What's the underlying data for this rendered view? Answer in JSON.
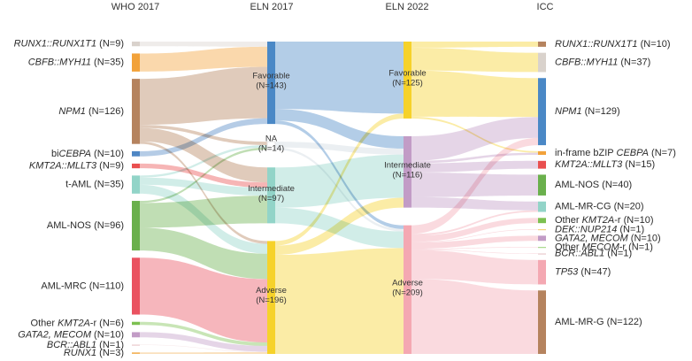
{
  "headers": [
    "WHO 2017",
    "ELN 2017",
    "ELN 2022",
    "ICC"
  ],
  "who2017": [
    {
      "name": "RUNX1::RUNX1T1",
      "n": 9,
      "label": "RUNX1::RUNX1T1 (N=9)",
      "color": "#d9d2cc"
    },
    {
      "name": "CBFB::MYH11",
      "n": 35,
      "label": "CBFB::MYH11 (N=35)",
      "color": "#f2a23a"
    },
    {
      "name": "NPM1",
      "n": 126,
      "label": "NPM1 (N=126)",
      "color": "#b5835e"
    },
    {
      "name": "biCEBPA",
      "n": 10,
      "label": "biCEBPA (N=10)",
      "color": "#4e86c4"
    },
    {
      "name": "KMT2A::MLLT3",
      "n": 9,
      "label": "KMT2A::MLLT3 (N=9)",
      "color": "#e94f4f"
    },
    {
      "name": "t-AML",
      "n": 35,
      "label": "t-AML (N=35)",
      "color": "#92d4c8"
    },
    {
      "name": "AML-NOS",
      "n": 96,
      "label": "AML-NOS (N=96)",
      "color": "#6ab04c"
    },
    {
      "name": "AML-MRC",
      "n": 110,
      "label": "AML-MRC (N=110)",
      "color": "#ea5260"
    },
    {
      "name": "Other KMT2A-r",
      "n": 6,
      "label": "Other KMT2A-r (N=6)",
      "color": "#7cc050"
    },
    {
      "name": "GATA2, MECOM",
      "n": 10,
      "label": "GATA2, MECOM (N=10)",
      "color": "#c29cc6"
    },
    {
      "name": "BCR::ABL1",
      "n": 1,
      "label": "BCR::ABL1 (N=1)",
      "color": "#e9c9cc"
    },
    {
      "name": "RUNX1",
      "n": 3,
      "label": "RUNX1 (N=3)",
      "color": "#f3b660"
    }
  ],
  "eln2017": [
    {
      "name": "Favorable",
      "n": 143,
      "label": "Favorable",
      "count": "(N=143)",
      "color": "#4a88c6"
    },
    {
      "name": "NA",
      "n": 14,
      "label": "NA",
      "count": "(N=14)",
      "color": "#ffffff"
    },
    {
      "name": "Intermediate",
      "n": 97,
      "label": "Intermediate",
      "count": "(N=97)",
      "color": "#92d4c8"
    },
    {
      "name": "Adverse",
      "n": 196,
      "label": "Adverse",
      "count": "(N=196)",
      "color": "#f6d22a"
    }
  ],
  "eln2022": [
    {
      "name": "Favorable",
      "n": 125,
      "label": "Favorable",
      "count": "(N=125)",
      "color": "#f6d22a"
    },
    {
      "name": "Intermediate",
      "n": 116,
      "label": "Intermediate",
      "count": "(N=116)",
      "color": "#c29cc6"
    },
    {
      "name": "Adverse",
      "n": 209,
      "label": "Adverse",
      "count": "(N=209)",
      "color": "#f4a8b2"
    }
  ],
  "icc": [
    {
      "name": "RUNX1::RUNX1T1",
      "n": 10,
      "label": "RUNX1::RUNX1T1 (N=10)",
      "color": "#b5835e"
    },
    {
      "name": "CBFB::MYH11",
      "n": 37,
      "label": "CBFB::MYH11 (N=37)",
      "color": "#d9d2cc"
    },
    {
      "name": "NPM1",
      "n": 129,
      "label": "NPM1 (N=129)",
      "color": "#4a88c6"
    },
    {
      "name": "in-frame bZIP CEBPA",
      "n": 7,
      "label": "in-frame bZIP CEBPA (N=7)",
      "color": "#f2a23a"
    },
    {
      "name": "KMT2A::MLLT3",
      "n": 15,
      "label": "KMT2A::MLLT3 (N=15)",
      "color": "#e94f4f"
    },
    {
      "name": "AML-NOS",
      "n": 40,
      "label": "AML-NOS (N=40)",
      "color": "#6ab04c"
    },
    {
      "name": "AML-MR-CG",
      "n": 20,
      "label": "AML-MR-CG (N=20)",
      "color": "#92d4c8"
    },
    {
      "name": "Other KMT2A-r",
      "n": 10,
      "label": "Other KMT2A-r (N=10)",
      "color": "#7cc050"
    },
    {
      "name": "DEK::NUP214",
      "n": 1,
      "label": "DEK::NUP214 (N=1)",
      "color": "#f3d27a"
    },
    {
      "name": "GATA2, MECOM",
      "n": 10,
      "label": "GATA2, MECOM (N=10)",
      "color": "#c29cc6"
    },
    {
      "name": "Other MECOM-r",
      "n": 1,
      "label": "Other MECOM-r (N=1)",
      "color": "#a8d98a"
    },
    {
      "name": "BCR::ABL1",
      "n": 1,
      "label": "BCR::ABL1 (N=1)",
      "color": "#e9c9cc"
    },
    {
      "name": "TP53",
      "n": 47,
      "label": "TP53 (N=47)",
      "color": "#f4a8b2"
    },
    {
      "name": "AML-MR-G",
      "n": 122,
      "label": "AML-MR-G (N=122)",
      "color": "#b5835e"
    }
  ],
  "flows_who_eln2017": [
    [
      "RUNX1::RUNX1T1",
      "Favorable",
      9
    ],
    [
      "CBFB::MYH11",
      "Favorable",
      35
    ],
    [
      "NPM1",
      "Favorable",
      89
    ],
    [
      "NPM1",
      "NA",
      6
    ],
    [
      "NPM1",
      "Intermediate",
      26
    ],
    [
      "NPM1",
      "Adverse",
      5
    ],
    [
      "biCEBPA",
      "Favorable",
      10
    ],
    [
      "KMT2A::MLLT3",
      "Intermediate",
      9
    ],
    [
      "t-AML",
      "NA",
      4
    ],
    [
      "t-AML",
      "Intermediate",
      14
    ],
    [
      "t-AML",
      "Adverse",
      17
    ],
    [
      "AML-NOS",
      "NA",
      4
    ],
    [
      "AML-NOS",
      "Intermediate",
      48
    ],
    [
      "AML-NOS",
      "Adverse",
      44
    ],
    [
      "AML-MRC",
      "Adverse",
      110
    ],
    [
      "Other KMT2A-r",
      "Adverse",
      6
    ],
    [
      "GATA2, MECOM",
      "Adverse",
      10
    ],
    [
      "BCR::ABL1",
      "Adverse",
      1
    ],
    [
      "RUNX1",
      "Adverse",
      3
    ]
  ],
  "flows_eln2017_eln2022": [
    [
      "Favorable",
      "Favorable",
      117
    ],
    [
      "Favorable",
      "Intermediate",
      20
    ],
    [
      "Favorable",
      "Adverse",
      6
    ],
    [
      "NA",
      "Intermediate",
      10
    ],
    [
      "NA",
      "Adverse",
      4
    ],
    [
      "Intermediate",
      "Intermediate",
      70
    ],
    [
      "Intermediate",
      "Adverse",
      27
    ],
    [
      "Adverse",
      "Favorable",
      8
    ],
    [
      "Adverse",
      "Intermediate",
      16
    ],
    [
      "Adverse",
      "Adverse",
      172
    ]
  ],
  "flows_eln2022_icc": [
    [
      "Favorable",
      "RUNX1::RUNX1T1",
      10
    ],
    [
      "Favorable",
      "CBFB::MYH11",
      37
    ],
    [
      "Favorable",
      "NPM1",
      75
    ],
    [
      "Favorable",
      "in-frame bZIP CEBPA",
      3
    ],
    [
      "Intermediate",
      "NPM1",
      40
    ],
    [
      "Intermediate",
      "in-frame bZIP CEBPA",
      4
    ],
    [
      "Intermediate",
      "KMT2A::MLLT3",
      15
    ],
    [
      "Intermediate",
      "AML-NOS",
      40
    ],
    [
      "Intermediate",
      "AML-MR-CG",
      17
    ],
    [
      "Adverse",
      "NPM1",
      14
    ],
    [
      "Adverse",
      "AML-MR-CG",
      3
    ],
    [
      "Adverse",
      "Other KMT2A-r",
      10
    ],
    [
      "Adverse",
      "DEK::NUP214",
      1
    ],
    [
      "Adverse",
      "GATA2, MECOM",
      10
    ],
    [
      "Adverse",
      "Other MECOM-r",
      1
    ],
    [
      "Adverse",
      "BCR::ABL1",
      1
    ],
    [
      "Adverse",
      "TP53",
      47
    ],
    [
      "Adverse",
      "AML-MR-G",
      122
    ]
  ]
}
